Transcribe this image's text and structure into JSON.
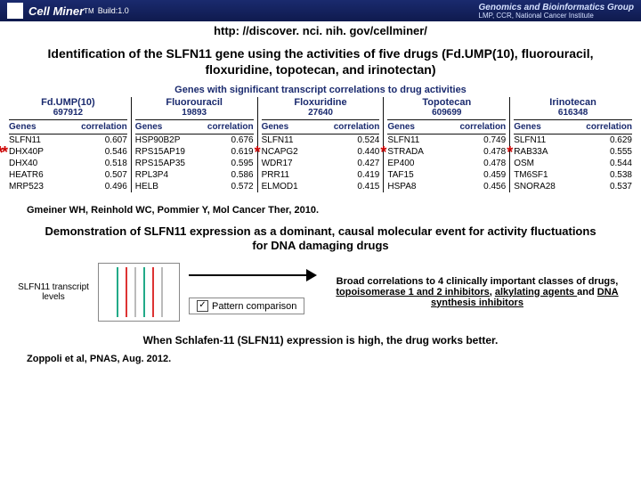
{
  "header": {
    "brand": "Cell Miner",
    "tm": "TM",
    "build": "Build:1.0",
    "url": "http: //discover. nci. nih. gov/cellminer/",
    "right1": "Genomics and Bioinformatics Group",
    "right2": "LMP, CCR, National Cancer Institute"
  },
  "title": "Identification of the SLFN11 gene using the activities of five drugs (Fd.UMP(10), fluorouracil, floxuridine, topotecan, and irinotectan)",
  "table_caption": "Genes with significant transcript correlations to drug activities",
  "hdr_genes": "Genes",
  "hdr_corr": "correlation",
  "drugs": [
    {
      "name": "Fd.UMP(10)",
      "n": "697912",
      "star": true,
      "rows": [
        {
          "g": "SLFN11",
          "c": "0.607"
        },
        {
          "g": "DHX40P",
          "c": "0.546"
        },
        {
          "g": "DHX40",
          "c": "0.518"
        },
        {
          "g": "HEATR6",
          "c": "0.507"
        },
        {
          "g": "MRP523",
          "c": "0.496"
        }
      ]
    },
    {
      "name": "Fluorouracil",
      "n": "19893",
      "star": false,
      "rows": [
        {
          "g": "HSP90B2P",
          "c": "0.676"
        },
        {
          "g": "RPS15AP19",
          "c": "0.619"
        },
        {
          "g": "RPS15AP35",
          "c": "0.595"
        },
        {
          "g": "RPL3P4",
          "c": "0.586"
        },
        {
          "g": "HELB",
          "c": "0.572"
        }
      ]
    },
    {
      "name": "Floxuridine",
      "n": "27640",
      "star": true,
      "rows": [
        {
          "g": "SLFN11",
          "c": "0.524"
        },
        {
          "g": "NCAPG2",
          "c": "0.440"
        },
        {
          "g": "WDR17",
          "c": "0.427"
        },
        {
          "g": "PRR11",
          "c": "0.419"
        },
        {
          "g": "ELMOD1",
          "c": "0.415"
        }
      ]
    },
    {
      "name": "Topotecan",
      "n": "609699",
      "star": true,
      "rows": [
        {
          "g": "SLFN11",
          "c": "0.749"
        },
        {
          "g": "STRADA",
          "c": "0.478"
        },
        {
          "g": "EP400",
          "c": "0.478"
        },
        {
          "g": "TAF15",
          "c": "0.459"
        },
        {
          "g": "HSPA8",
          "c": "0.456"
        }
      ]
    },
    {
      "name": "Irinotecan",
      "n": "616348",
      "star": true,
      "rows": [
        {
          "g": "SLFN11",
          "c": "0.629"
        },
        {
          "g": "RAB33A",
          "c": "0.555"
        },
        {
          "g": "OSM",
          "c": "0.544"
        },
        {
          "g": "TM6SF1",
          "c": "0.538"
        },
        {
          "g": "SNORA28",
          "c": "0.537"
        }
      ]
    }
  ],
  "cite1": "Gmeiner WH, Reinhold WC, Pommier Y, Mol Cancer Ther, 2010.",
  "demo_title": "Demonstration of SLFN11 expression as a dominant, causal molecular event for activity fluctuations for DNA damaging drugs",
  "slfn_label": "SLFN11 transcript levels",
  "pattern_btn": "Pattern comparison",
  "broad_pre": "Broad correlations to 4 clinically important classes of drugs, ",
  "broad_u1": "topoisomerase 1 and 2 inhibitors,",
  "broad_u2": "alkylating agents ",
  "broad_and": "and ",
  "broad_u3": "DNA synthesis inhibitors",
  "closing": "When Schlafen-11 (SLFN11) expression is high, the drug works better.",
  "ref2": "Zoppoli et al, PNAS, Aug. 2012.",
  "colors": {
    "header_bg": "#1a2a6e",
    "accent": "#1a2a6e",
    "star": "#c00"
  }
}
